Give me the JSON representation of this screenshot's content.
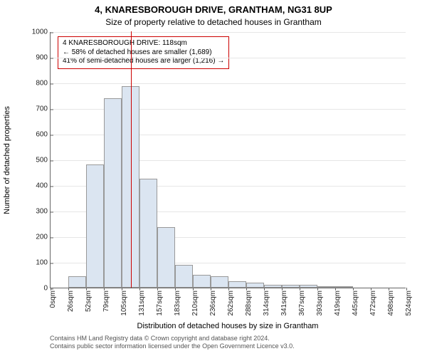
{
  "chart": {
    "type": "histogram",
    "title_main": "4, KNARESBOROUGH DRIVE, GRANTHAM, NG31 8UP",
    "subtitle": "Size of property relative to detached houses in Grantham",
    "y_label": "Number of detached properties",
    "x_label": "Distribution of detached houses by size in Grantham",
    "ylim": [
      0,
      1000
    ],
    "ytick_step": 100,
    "x_ticks": [
      "0sqm",
      "26sqm",
      "52sqm",
      "79sqm",
      "105sqm",
      "131sqm",
      "157sqm",
      "183sqm",
      "210sqm",
      "236sqm",
      "262sqm",
      "288sqm",
      "314sqm",
      "341sqm",
      "367sqm",
      "393sqm",
      "419sqm",
      "445sqm",
      "472sqm",
      "498sqm",
      "524sqm"
    ],
    "values": [
      0,
      45,
      480,
      740,
      785,
      425,
      235,
      90,
      50,
      45,
      25,
      20,
      10,
      10,
      10,
      5,
      5,
      0,
      0,
      0
    ],
    "bar_color": "#dbe5f1",
    "bar_border_color": "#999999",
    "grid_color": "#e6e6e6",
    "background_color": "#ffffff",
    "marker_x_sqm": 118,
    "marker_color": "#cc0000",
    "info_box": {
      "line1": "4 KNARESBOROUGH DRIVE: 118sqm",
      "line2": "← 58% of detached houses are smaller (1,689)",
      "line3": "41% of semi-detached houses are larger (1,216) →",
      "border_color": "#cc0000",
      "fontsize": 10
    },
    "title_fontsize": 13,
    "subtitle_fontsize": 12,
    "tick_fontsize": 10,
    "label_fontsize": 11
  },
  "footer": {
    "line1": "Contains HM Land Registry data © Crown copyright and database right 2024.",
    "line2": "Contains public sector information licensed under the Open Government Licence v3.0."
  }
}
